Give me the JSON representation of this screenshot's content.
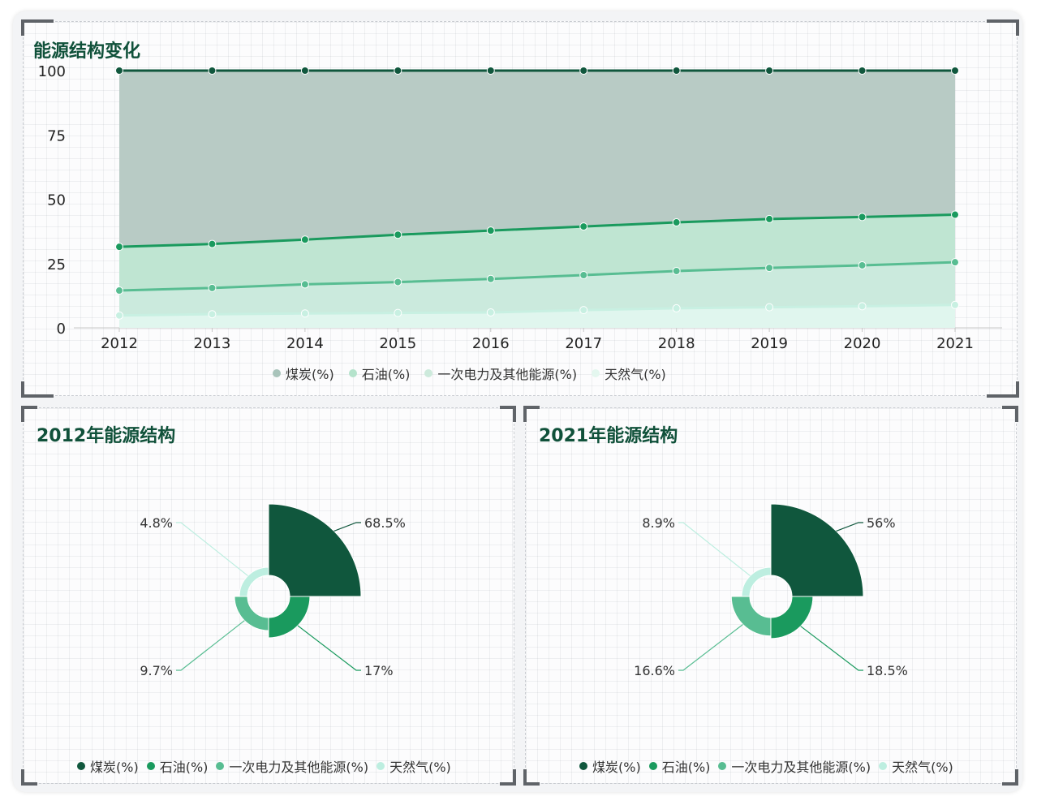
{
  "top_panel": {
    "title": "能源结构变化"
  },
  "left_panel": {
    "title": "2012年能源结构"
  },
  "right_panel": {
    "title": "2021年能源结构"
  },
  "colors": {
    "coal": "#10573d",
    "oil": "#1a9a5e",
    "other": "#58bd92",
    "gas": "#bdeee0",
    "title": "#10513a"
  },
  "legend": [
    "煤炭(%)",
    "石油(%)",
    "一次电力及其他能源(%)",
    "天然气(%)"
  ],
  "chart_data": [
    {
      "type": "area",
      "stacked": true,
      "categories": [
        "2012",
        "2013",
        "2014",
        "2015",
        "2016",
        "2017",
        "2018",
        "2019",
        "2020",
        "2021"
      ],
      "ylim": [
        0,
        100
      ],
      "yticks": [
        0,
        25,
        50,
        75,
        100
      ],
      "legend_position": "bottom",
      "series": [
        {
          "name": "天然气(%)",
          "values": [
            4.8,
            5.3,
            5.6,
            5.8,
            6.0,
            6.9,
            7.6,
            8.0,
            8.4,
            8.9
          ]
        },
        {
          "name": "一次电力及其他能源(%)",
          "values": [
            9.7,
            10.2,
            11.3,
            12.0,
            13.0,
            13.6,
            14.5,
            15.3,
            15.9,
            16.6
          ]
        },
        {
          "name": "石油(%)",
          "values": [
            17.0,
            17.1,
            17.4,
            18.4,
            18.8,
            18.9,
            18.9,
            19.0,
            18.8,
            18.5
          ]
        },
        {
          "name": "煤炭(%)",
          "values": [
            68.5,
            67.4,
            65.7,
            63.8,
            62.2,
            60.6,
            59.0,
            57.7,
            56.9,
            56.0
          ]
        }
      ]
    },
    {
      "type": "pie",
      "rose": true,
      "categories": [
        "煤炭(%)",
        "石油(%)",
        "一次电力及其他能源(%)",
        "天然气(%)"
      ],
      "values": [
        68.5,
        17,
        9.7,
        4.8
      ],
      "labels": [
        "68.5%",
        "17%",
        "9.7%",
        "4.8%"
      ],
      "legend_position": "bottom"
    },
    {
      "type": "pie",
      "rose": true,
      "categories": [
        "煤炭(%)",
        "石油(%)",
        "一次电力及其他能源(%)",
        "天然气(%)"
      ],
      "values": [
        56,
        18.5,
        16.6,
        8.9
      ],
      "labels": [
        "56%",
        "18.5%",
        "16.6%",
        "8.9%"
      ],
      "legend_position": "bottom"
    }
  ]
}
